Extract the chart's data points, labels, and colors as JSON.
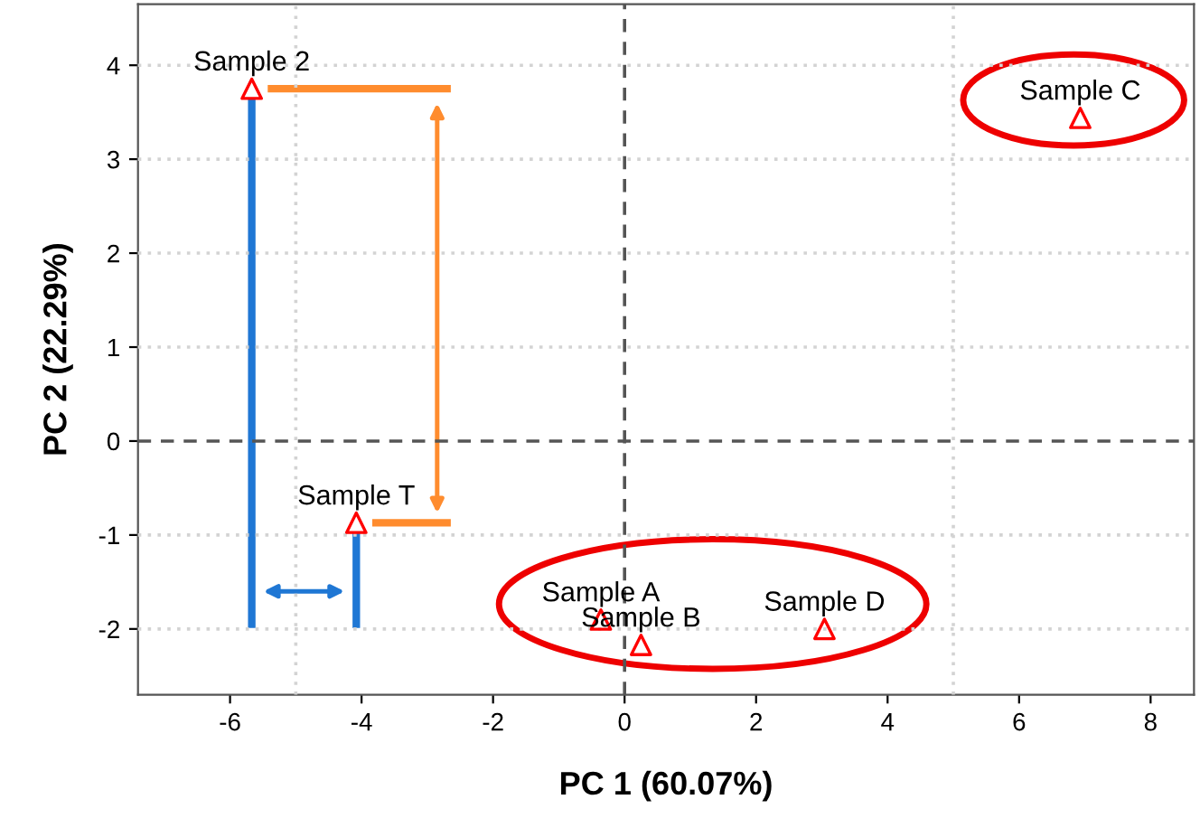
{
  "chart_data": {
    "type": "scatter",
    "xlabel": "PC 1 (60.07%)",
    "ylabel": "PC 2 (22.29%)",
    "series": [
      {
        "color": "#ff0000",
        "x": [
          -5.67,
          -4.08,
          -0.36,
          0.25,
          3.04,
          6.93
        ],
        "values": [
          3.75,
          -0.87,
          -1.9,
          -2.17,
          -2.0,
          3.44
        ]
      }
    ],
    "marker": "triangle",
    "xlim": [
      -7.4,
      8.66
    ],
    "ylim": [
      -2.7,
      4.65
    ],
    "xticks": [
      -6,
      -4,
      -2,
      0,
      2,
      4,
      6,
      8
    ],
    "yticks": [
      -2,
      -1,
      0,
      1,
      2,
      3,
      4
    ],
    "ref_lines": [
      {
        "axis": "x",
        "value": 0,
        "color": "#555555",
        "line_style": "dashed"
      },
      {
        "axis": "y",
        "value": 0,
        "color": "#555555",
        "line_style": "dashed"
      },
      {
        "axis": "x",
        "value": -5,
        "color": "#d3d3d3",
        "line_style": "dotted"
      },
      {
        "axis": "x",
        "value": 5,
        "color": "#d3d3d3",
        "line_style": "dotted"
      },
      {
        "axis": "y",
        "value": -2,
        "color": "#d3d3d3",
        "line_style": "dotted"
      },
      {
        "axis": "y",
        "value": -1,
        "color": "#d3d3d3",
        "line_style": "dotted"
      },
      {
        "axis": "y",
        "value": 1,
        "color": "#d3d3d3",
        "line_style": "dotted"
      },
      {
        "axis": "y",
        "value": 2,
        "color": "#d3d3d3",
        "line_style": "dotted"
      },
      {
        "axis": "y",
        "value": 3,
        "color": "#d3d3d3",
        "line_style": "dotted"
      },
      {
        "axis": "y",
        "value": 4,
        "color": "#d3d3d3",
        "line_style": "dotted"
      }
    ],
    "annotations": [
      {
        "text": "Sample 2",
        "x": -5.67,
        "y": 3.75
      },
      {
        "text": "Sample T",
        "x": -4.08,
        "y": -0.87
      },
      {
        "text": "Sample A",
        "x": -0.36,
        "y": -1.9
      },
      {
        "text": "Sample B",
        "x": 0.25,
        "y": -2.17
      },
      {
        "text": "Sample D",
        "x": 3.04,
        "y": -2.0
      },
      {
        "text": "Sample C",
        "x": 6.93,
        "y": 3.44
      }
    ]
  }
}
